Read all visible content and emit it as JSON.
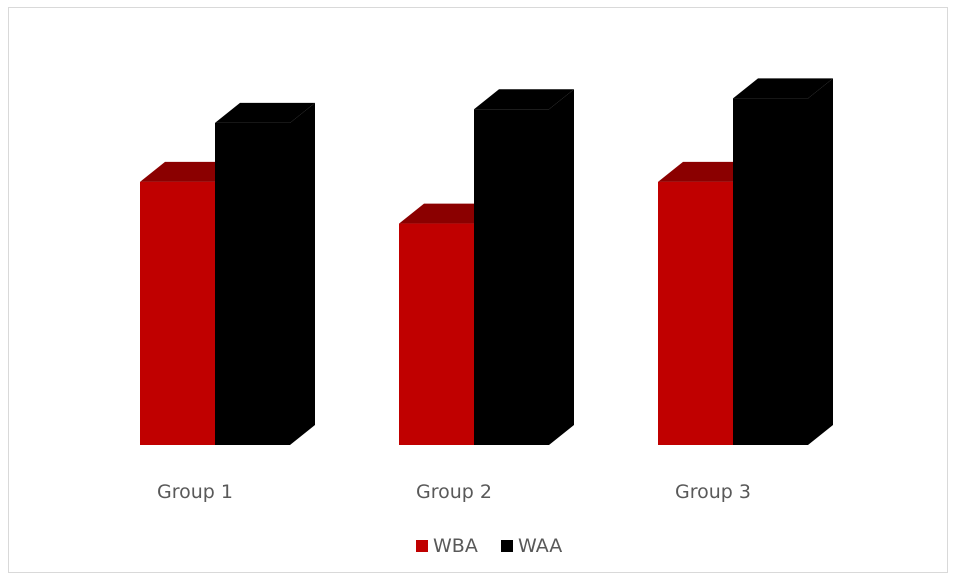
{
  "chart_data": {
    "type": "bar",
    "style": "3d-clustered-column",
    "categories": [
      "Group 1",
      "Group 2",
      "Group 3"
    ],
    "series": [
      {
        "name": "WBA",
        "color": "#c00000",
        "top_color": "#8b0000",
        "side_color": "#a00000",
        "values": [
          290,
          244,
          290
        ]
      },
      {
        "name": "WAA",
        "color": "#000000",
        "top_color": "#000000",
        "side_color": "#000000",
        "values": [
          355,
          370,
          382
        ]
      }
    ],
    "ylim": [
      0,
      400
    ],
    "title": "",
    "xlabel": "",
    "ylabel": "",
    "grid": false,
    "axes_visible": false,
    "legend_position": "bottom"
  }
}
